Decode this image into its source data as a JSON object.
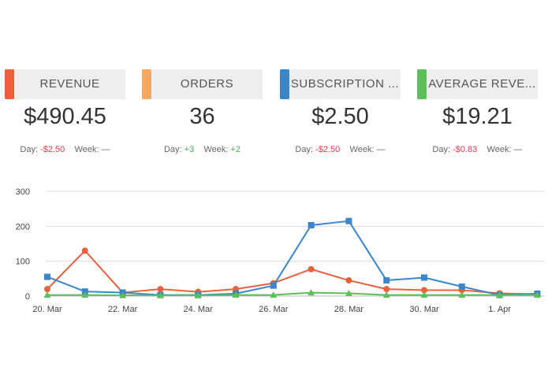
{
  "cards": [
    {
      "title": "REVENUE",
      "value": "$490.45",
      "day_label": "Day:",
      "day_delta": "-$2.50",
      "day_trend": "neg",
      "week_label": "Week:",
      "week_delta": "—",
      "week_trend": "none",
      "accent": "#e8603c"
    },
    {
      "title": "ORDERS",
      "value": "36",
      "day_label": "Day:",
      "day_delta": "+3",
      "day_trend": "pos",
      "week_label": "Week:",
      "week_delta": "+2",
      "week_trend": "pos",
      "accent": "#f5a860"
    },
    {
      "title": "SUBSCRIPTION ...",
      "value": "$2.50",
      "day_label": "Day:",
      "day_delta": "-$2.50",
      "day_trend": "neg",
      "week_label": "Week:",
      "week_delta": "—",
      "week_trend": "none",
      "accent": "#3a86c8"
    },
    {
      "title": "AVERAGE REVE...",
      "value": "$19.21",
      "day_label": "Day:",
      "day_delta": "-$0.83",
      "day_trend": "neg",
      "week_label": "Week:",
      "week_delta": "—",
      "week_trend": "none",
      "accent": "#5cbf58"
    }
  ],
  "chart_data": {
    "type": "line",
    "x": [
      "20. Mar",
      "21. Mar",
      "22. Mar",
      "23. Mar",
      "24. Mar",
      "25. Mar",
      "26. Mar",
      "27. Mar",
      "28. Mar",
      "29. Mar",
      "30. Mar",
      "31. Mar",
      "1. Apr",
      "2. Apr"
    ],
    "x_tick_labels": [
      "20. Mar",
      "22. Mar",
      "24. Mar",
      "26. Mar",
      "28. Mar",
      "30. Mar",
      "1. Apr"
    ],
    "ylim": [
      0,
      300
    ],
    "y_ticks": [
      0,
      100,
      200,
      300
    ],
    "grid": true,
    "series": [
      {
        "name": "Revenue",
        "color": "#e8603c",
        "marker": "circle",
        "values": [
          20,
          130,
          10,
          20,
          12,
          20,
          37,
          77,
          45,
          20,
          17,
          17,
          8,
          5
        ]
      },
      {
        "name": "Subscription",
        "color": "#3a86c8",
        "marker": "square",
        "values": [
          55,
          13,
          10,
          3,
          3,
          7,
          30,
          203,
          215,
          45,
          53,
          27,
          3,
          7
        ]
      },
      {
        "name": "Orders",
        "color": "#5cbf58",
        "marker": "triangle",
        "values": [
          3,
          3,
          2,
          2,
          2,
          3,
          3,
          10,
          8,
          3,
          3,
          3,
          3,
          3
        ]
      }
    ]
  }
}
